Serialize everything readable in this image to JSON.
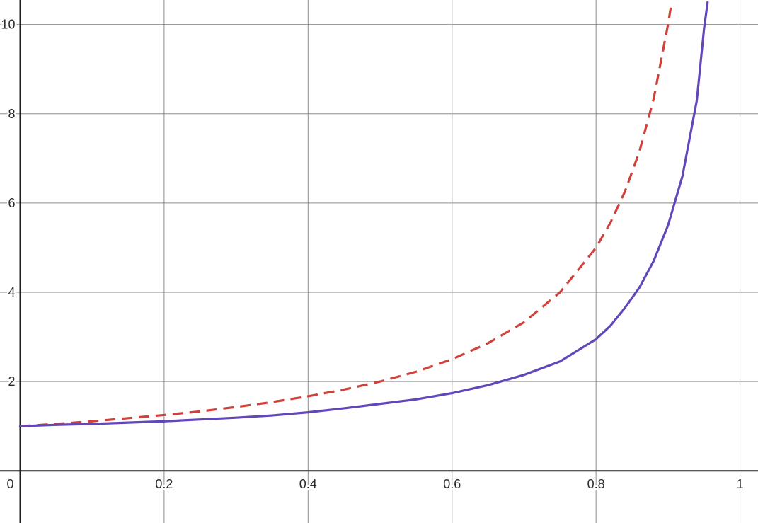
{
  "chart_data": {
    "type": "line",
    "title": "",
    "xlabel": "",
    "ylabel": "",
    "xlim": [
      -0.028,
      1.025
    ],
    "ylim": [
      -1.17,
      10.55
    ],
    "grid": true,
    "x_ticks": [
      {
        "value": 0.2,
        "label": "0.2"
      },
      {
        "value": 0.4,
        "label": "0.4"
      },
      {
        "value": 0.6,
        "label": "0.6"
      },
      {
        "value": 0.8,
        "label": "0.8"
      },
      {
        "value": 1,
        "label": "1"
      }
    ],
    "y_ticks": [
      {
        "value": 2,
        "label": "2"
      },
      {
        "value": 4,
        "label": "4"
      },
      {
        "value": 6,
        "label": "6"
      },
      {
        "value": 8,
        "label": "8"
      },
      {
        "value": 10,
        "label": "10"
      }
    ],
    "origin_label": "0",
    "series": [
      {
        "style": "dashed",
        "color": "#d0413c",
        "x": [
          0,
          0.05,
          0.1,
          0.15,
          0.2,
          0.25,
          0.3,
          0.35,
          0.4,
          0.45,
          0.5,
          0.55,
          0.6,
          0.65,
          0.7,
          0.75,
          0.8,
          0.82,
          0.84,
          0.86,
          0.88,
          0.9,
          0.905
        ],
        "y": [
          1,
          1.05,
          1.11,
          1.18,
          1.25,
          1.33,
          1.43,
          1.54,
          1.67,
          1.82,
          2.0,
          2.22,
          2.5,
          2.86,
          3.33,
          4.0,
          5.0,
          5.56,
          6.25,
          7.14,
          8.33,
          10.0,
          10.5
        ]
      },
      {
        "style": "solid",
        "color": "#6247b8",
        "x": [
          0,
          0.05,
          0.1,
          0.15,
          0.2,
          0.25,
          0.3,
          0.35,
          0.4,
          0.45,
          0.5,
          0.55,
          0.6,
          0.65,
          0.7,
          0.75,
          0.8,
          0.82,
          0.84,
          0.86,
          0.88,
          0.9,
          0.92,
          0.94,
          0.95,
          0.955
        ],
        "y": [
          1,
          1.03,
          1.05,
          1.08,
          1.11,
          1.15,
          1.19,
          1.24,
          1.31,
          1.4,
          1.5,
          1.6,
          1.74,
          1.92,
          2.15,
          2.45,
          2.95,
          3.25,
          3.65,
          4.1,
          4.7,
          5.5,
          6.6,
          8.3,
          9.9,
          10.5
        ]
      }
    ]
  }
}
